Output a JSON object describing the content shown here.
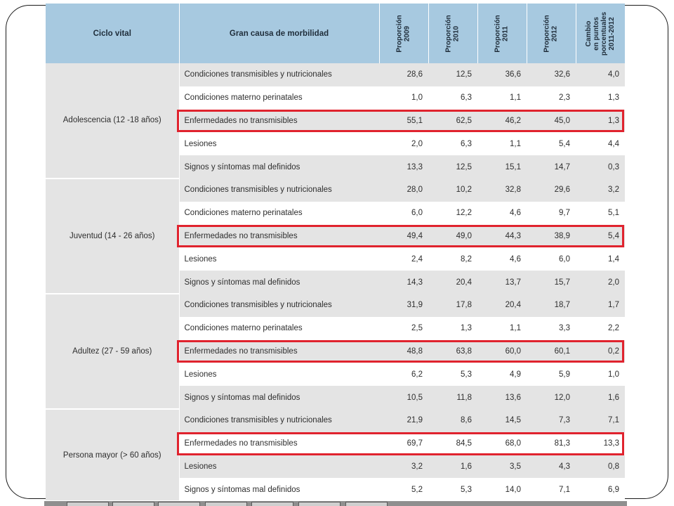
{
  "table": {
    "headers": [
      "Ciclo vital",
      "Gran causa de morbilidad",
      "Proporción\n2009",
      "Proporción\n2010",
      "Proporción\n2011",
      "Proporción\n2012",
      "Cambio\nen puntos\nporcentuales\n2011-2012"
    ],
    "groups": [
      {
        "label": "Adolescencia (12 -18 años)",
        "rows": [
          {
            "cause": "Condiciones transmisibles y nutricionales",
            "v": [
              "28,6",
              "12,5",
              "36,6",
              "32,6",
              "4,0"
            ],
            "highlight": false
          },
          {
            "cause": "Condiciones materno perinatales",
            "v": [
              "1,0",
              "6,3",
              "1,1",
              "2,3",
              "1,3"
            ],
            "highlight": false
          },
          {
            "cause": "Enfermedades no transmisibles",
            "v": [
              "55,1",
              "62,5",
              "46,2",
              "45,0",
              "1,3"
            ],
            "highlight": true
          },
          {
            "cause": "Lesiones",
            "v": [
              "2,0",
              "6,3",
              "1,1",
              "5,4",
              "4,4"
            ],
            "highlight": false
          },
          {
            "cause": "Signos y síntomas mal definidos",
            "v": [
              "13,3",
              "12,5",
              "15,1",
              "14,7",
              "0,3"
            ],
            "highlight": false
          }
        ]
      },
      {
        "label": "Juventud (14 - 26 años)",
        "rows": [
          {
            "cause": "Condiciones transmisibles y nutricionales",
            "v": [
              "28,0",
              "10,2",
              "32,8",
              "29,6",
              "3,2"
            ],
            "highlight": false
          },
          {
            "cause": "Condiciones materno perinatales",
            "v": [
              "6,0",
              "12,2",
              "4,6",
              "9,7",
              "5,1"
            ],
            "highlight": false
          },
          {
            "cause": "Enfermedades no transmisibles",
            "v": [
              "49,4",
              "49,0",
              "44,3",
              "38,9",
              "5,4"
            ],
            "highlight": true
          },
          {
            "cause": "Lesiones",
            "v": [
              "2,4",
              "8,2",
              "4,6",
              "6,0",
              "1,4"
            ],
            "highlight": false
          },
          {
            "cause": "Signos y síntomas mal definidos",
            "v": [
              "14,3",
              "20,4",
              "13,7",
              "15,7",
              "2,0"
            ],
            "highlight": false
          }
        ]
      },
      {
        "label": "Adultez (27 - 59 años)",
        "rows": [
          {
            "cause": "Condiciones transmisibles y nutricionales",
            "v": [
              "31,9",
              "17,8",
              "20,4",
              "18,7",
              "1,7"
            ],
            "highlight": false
          },
          {
            "cause": "Condiciones materno perinatales",
            "v": [
              "2,5",
              "1,3",
              "1,1",
              "3,3",
              "2,2"
            ],
            "highlight": false
          },
          {
            "cause": "Enfermedades no transmisibles",
            "v": [
              "48,8",
              "63,8",
              "60,0",
              "60,1",
              "0,2"
            ],
            "highlight": true
          },
          {
            "cause": "Lesiones",
            "v": [
              "6,2",
              "5,3",
              "4,9",
              "5,9",
              "1,0"
            ],
            "highlight": false
          },
          {
            "cause": "Signos y síntomas mal definidos",
            "v": [
              "10,5",
              "11,8",
              "13,6",
              "12,0",
              "1,6"
            ],
            "highlight": false
          }
        ]
      },
      {
        "label": "Persona mayor (> 60 años)",
        "rows": [
          {
            "cause": "Condiciones transmisibles y nutricionales",
            "v": [
              "21,9",
              "8,6",
              "14,5",
              "7,3",
              "7,1"
            ],
            "highlight": false
          },
          {
            "cause": "Enfermedades no transmisibles",
            "v": [
              "69,7",
              "84,5",
              "68,0",
              "81,3",
              "13,3"
            ],
            "highlight": true
          },
          {
            "cause": "Lesiones",
            "v": [
              "3,2",
              "1,6",
              "3,5",
              "4,3",
              "0,8"
            ],
            "highlight": false
          },
          {
            "cause": "Signos y síntomas mal definidos",
            "v": [
              "5,2",
              "5,3",
              "14,0",
              "7,1",
              "6,9"
            ],
            "highlight": false
          }
        ]
      }
    ]
  },
  "colors": {
    "header_bg": "#a7c9e0",
    "shade_bg": "#e4e4e4",
    "highlight_border": "#e0232e"
  }
}
